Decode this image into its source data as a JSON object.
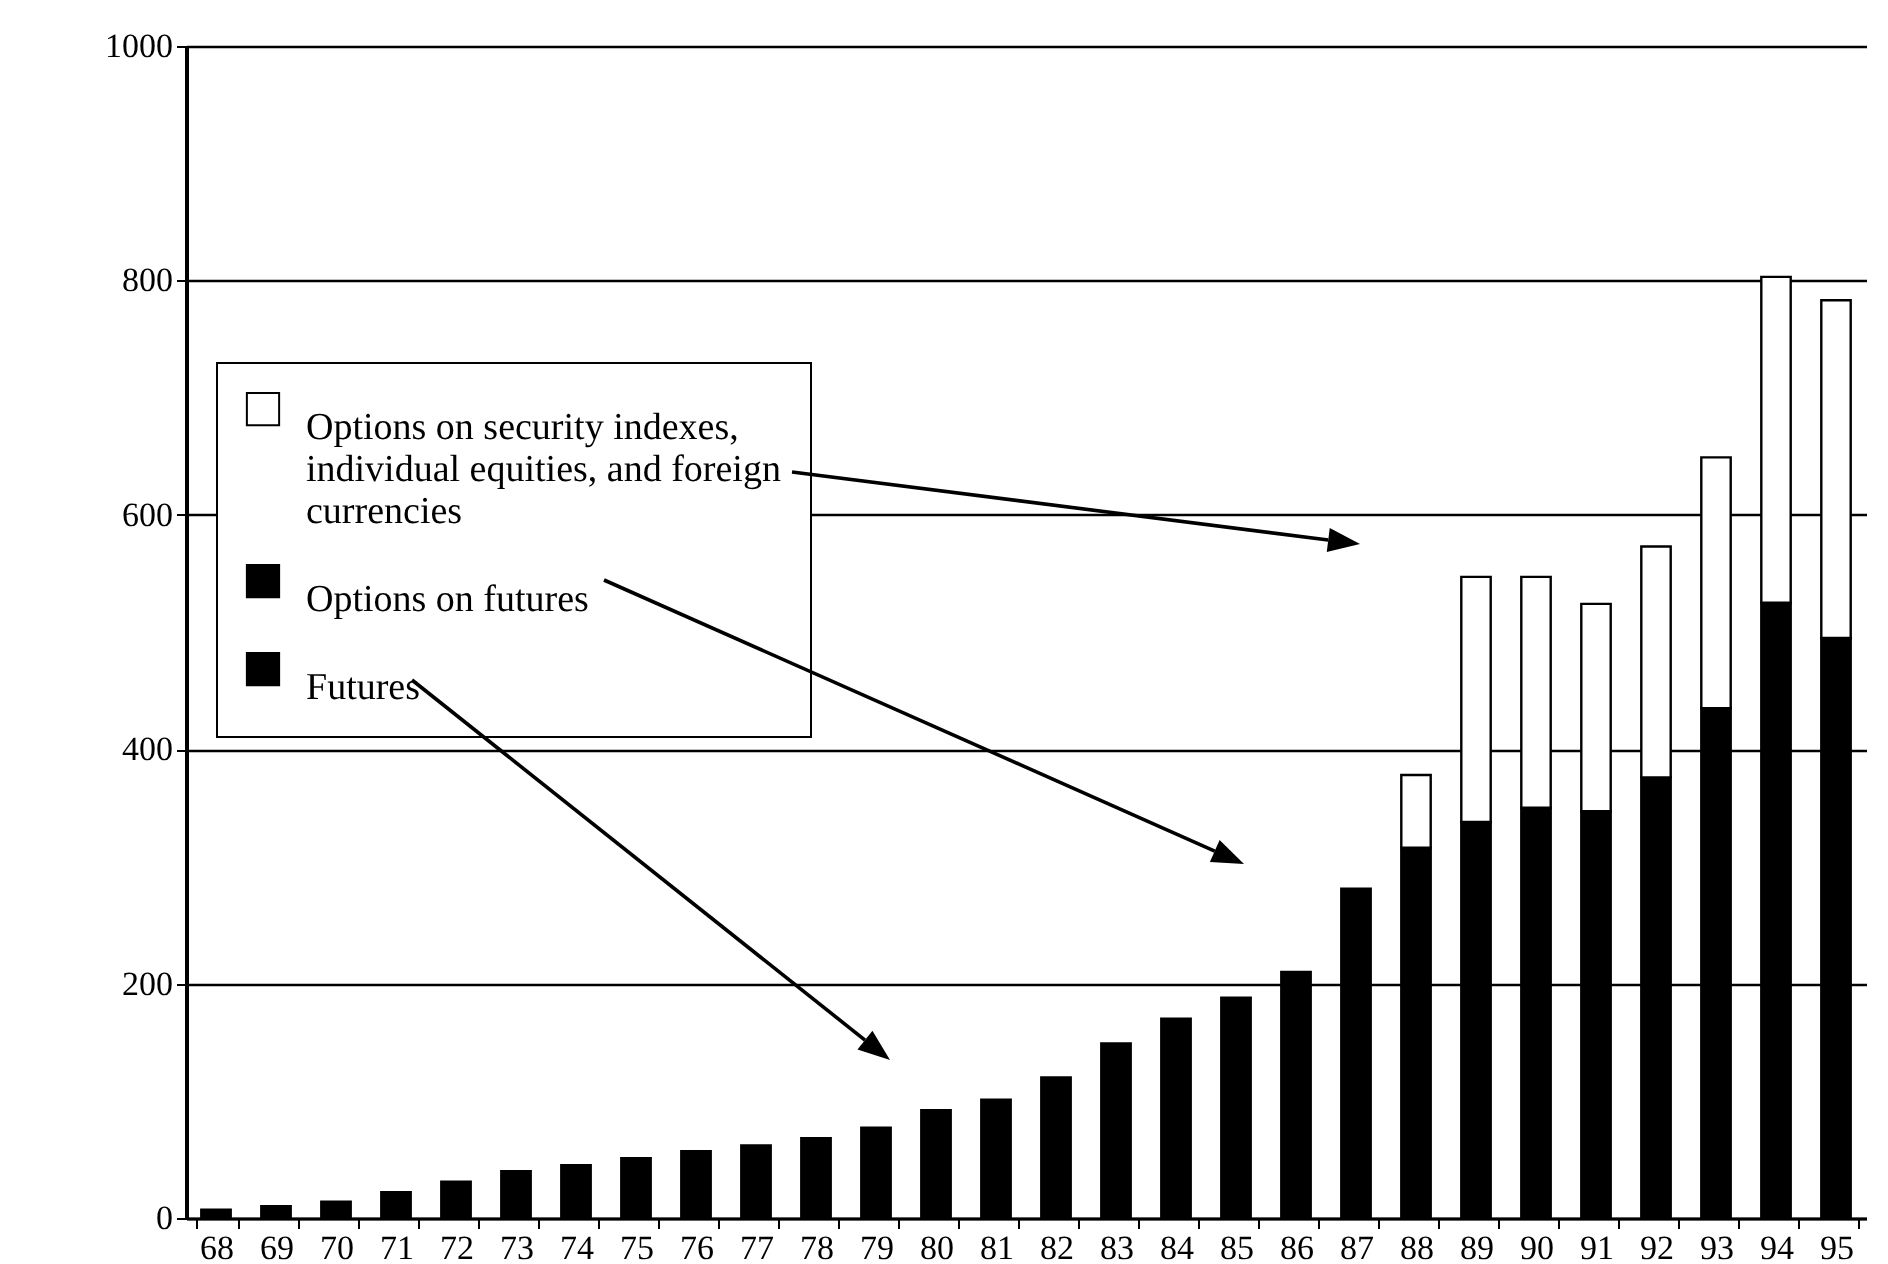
{
  "chart_data": {
    "type": "bar",
    "stacked": true,
    "categories": [
      "68",
      "69",
      "70",
      "71",
      "72",
      "73",
      "74",
      "75",
      "76",
      "77",
      "78",
      "79",
      "80",
      "81",
      "82",
      "83",
      "84",
      "85",
      "86",
      "87",
      "88",
      "89",
      "90",
      "91",
      "92",
      "93",
      "94",
      "95"
    ],
    "series": [
      {
        "name": "Futures",
        "color": "#000000",
        "values": [
          7,
          10,
          14,
          22,
          31,
          40,
          45,
          51,
          57,
          62,
          68,
          77,
          92,
          101,
          120,
          149,
          170,
          188,
          210,
          281,
          316,
          338,
          350,
          347,
          376,
          435,
          525,
          495
        ]
      },
      {
        "name": "Options on futures",
        "color": "#000000",
        "values": [
          null,
          null,
          null,
          null,
          null,
          null,
          null,
          null,
          null,
          null,
          null,
          null,
          null,
          null,
          null,
          null,
          null,
          null,
          null,
          null,
          null,
          null,
          null,
          null,
          null,
          null,
          null,
          null
        ]
      },
      {
        "name": "Options on security indexes, individual equities, and foreign currencies",
        "color": "#ffffff",
        "values": [
          null,
          null,
          null,
          null,
          null,
          null,
          null,
          null,
          null,
          null,
          null,
          null,
          null,
          null,
          null,
          null,
          null,
          null,
          null,
          null,
          62,
          209,
          197,
          177,
          197,
          214,
          278,
          288
        ]
      }
    ],
    "ylim": [
      0,
      1000
    ],
    "yticks": [
      0,
      200,
      400,
      600,
      800,
      1000
    ],
    "grid": "y",
    "legend": "left"
  }
}
